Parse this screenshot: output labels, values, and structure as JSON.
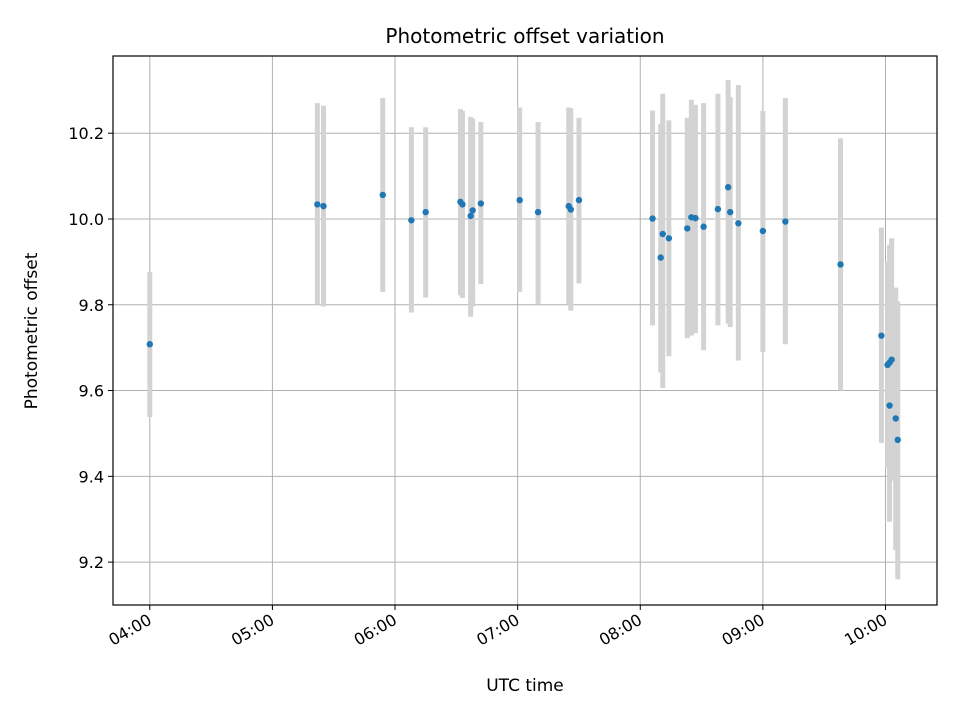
{
  "chart_data": {
    "type": "scatter",
    "title": "Photometric offset variation",
    "xlabel": "UTC time",
    "ylabel": "Photometric offset",
    "grid": true,
    "xlim_hours": [
      3.7,
      10.42
    ],
    "ylim": [
      9.1,
      10.38
    ],
    "x_ticks": [
      {
        "hour": 4,
        "label": "04:00"
      },
      {
        "hour": 5,
        "label": "05:00"
      },
      {
        "hour": 6,
        "label": "06:00"
      },
      {
        "hour": 7,
        "label": "07:00"
      },
      {
        "hour": 8,
        "label": "08:00"
      },
      {
        "hour": 9,
        "label": "09:00"
      },
      {
        "hour": 10,
        "label": "10:00"
      }
    ],
    "y_ticks": [
      {
        "value": 9.2,
        "label": "9.2"
      },
      {
        "value": 9.4,
        "label": "9.4"
      },
      {
        "value": 9.6,
        "label": "9.6"
      },
      {
        "value": 9.8,
        "label": "9.8"
      },
      {
        "value": 10.0,
        "label": "10.0"
      },
      {
        "value": 10.2,
        "label": "10.2"
      }
    ],
    "colors": {
      "point": "#1f77b4",
      "errorbar": "#d3d3d3",
      "grid": "#b0b0b0"
    },
    "points": [
      {
        "x": "04:00",
        "y": 9.708,
        "lo": 9.538,
        "hi": 9.876
      },
      {
        "x": "05:22",
        "y": 10.034,
        "lo": 9.8,
        "hi": 10.27
      },
      {
        "x": "05:25",
        "y": 10.03,
        "lo": 9.796,
        "hi": 10.264
      },
      {
        "x": "05:54",
        "y": 10.056,
        "lo": 9.83,
        "hi": 10.282
      },
      {
        "x": "06:08",
        "y": 9.997,
        "lo": 9.782,
        "hi": 10.214
      },
      {
        "x": "06:15",
        "y": 10.016,
        "lo": 9.817,
        "hi": 10.214
      },
      {
        "x": "06:32",
        "y": 10.04,
        "lo": 9.822,
        "hi": 10.256
      },
      {
        "x": "06:33",
        "y": 10.034,
        "lo": 9.816,
        "hi": 10.252
      },
      {
        "x": "06:37",
        "y": 10.007,
        "lo": 9.772,
        "hi": 10.238
      },
      {
        "x": "06:38",
        "y": 10.02,
        "lo": 9.796,
        "hi": 10.234
      },
      {
        "x": "06:42",
        "y": 10.036,
        "lo": 9.848,
        "hi": 10.226
      },
      {
        "x": "07:01",
        "y": 10.044,
        "lo": 9.83,
        "hi": 10.26
      },
      {
        "x": "07:10",
        "y": 10.016,
        "lo": 9.802,
        "hi": 10.226
      },
      {
        "x": "07:25",
        "y": 10.03,
        "lo": 9.8,
        "hi": 10.26
      },
      {
        "x": "07:26",
        "y": 10.022,
        "lo": 9.786,
        "hi": 10.258
      },
      {
        "x": "07:30",
        "y": 10.044,
        "lo": 9.85,
        "hi": 10.236
      },
      {
        "x": "08:06",
        "y": 10.001,
        "lo": 9.752,
        "hi": 10.253
      },
      {
        "x": "08:10",
        "y": 9.91,
        "lo": 9.642,
        "hi": 10.222
      },
      {
        "x": "08:11",
        "y": 9.965,
        "lo": 9.606,
        "hi": 10.292
      },
      {
        "x": "08:14",
        "y": 9.955,
        "lo": 9.68,
        "hi": 10.23
      },
      {
        "x": "08:23",
        "y": 9.978,
        "lo": 9.722,
        "hi": 10.236
      },
      {
        "x": "08:25",
        "y": 10.004,
        "lo": 9.728,
        "hi": 10.278
      },
      {
        "x": "08:27",
        "y": 10.002,
        "lo": 9.734,
        "hi": 10.266
      },
      {
        "x": "08:31",
        "y": 9.982,
        "lo": 9.694,
        "hi": 10.27
      },
      {
        "x": "08:38",
        "y": 10.023,
        "lo": 9.752,
        "hi": 10.292
      },
      {
        "x": "08:43",
        "y": 10.074,
        "lo": 9.756,
        "hi": 10.324
      },
      {
        "x": "08:44",
        "y": 10.016,
        "lo": 9.748,
        "hi": 10.284
      },
      {
        "x": "08:48",
        "y": 9.99,
        "lo": 9.67,
        "hi": 10.312
      },
      {
        "x": "09:00",
        "y": 9.972,
        "lo": 9.69,
        "hi": 10.252
      },
      {
        "x": "09:11",
        "y": 9.994,
        "lo": 9.708,
        "hi": 10.282
      },
      {
        "x": "09:38",
        "y": 9.894,
        "lo": 9.6,
        "hi": 10.188
      },
      {
        "x": "09:58",
        "y": 9.728,
        "lo": 9.478,
        "hi": 9.98
      },
      {
        "x": "10:01",
        "y": 9.66,
        "lo": 9.42,
        "hi": 9.9
      },
      {
        "x": "10:02",
        "y": 9.665,
        "lo": 9.392,
        "hi": 9.94
      },
      {
        "x": "10:02",
        "y": 9.565,
        "lo": 9.294,
        "hi": 9.836
      },
      {
        "x": "10:03",
        "y": 9.672,
        "lo": 9.39,
        "hi": 9.955
      },
      {
        "x": "10:05",
        "y": 9.535,
        "lo": 9.228,
        "hi": 9.84
      },
      {
        "x": "10:06",
        "y": 9.485,
        "lo": 9.16,
        "hi": 9.808
      }
    ]
  }
}
